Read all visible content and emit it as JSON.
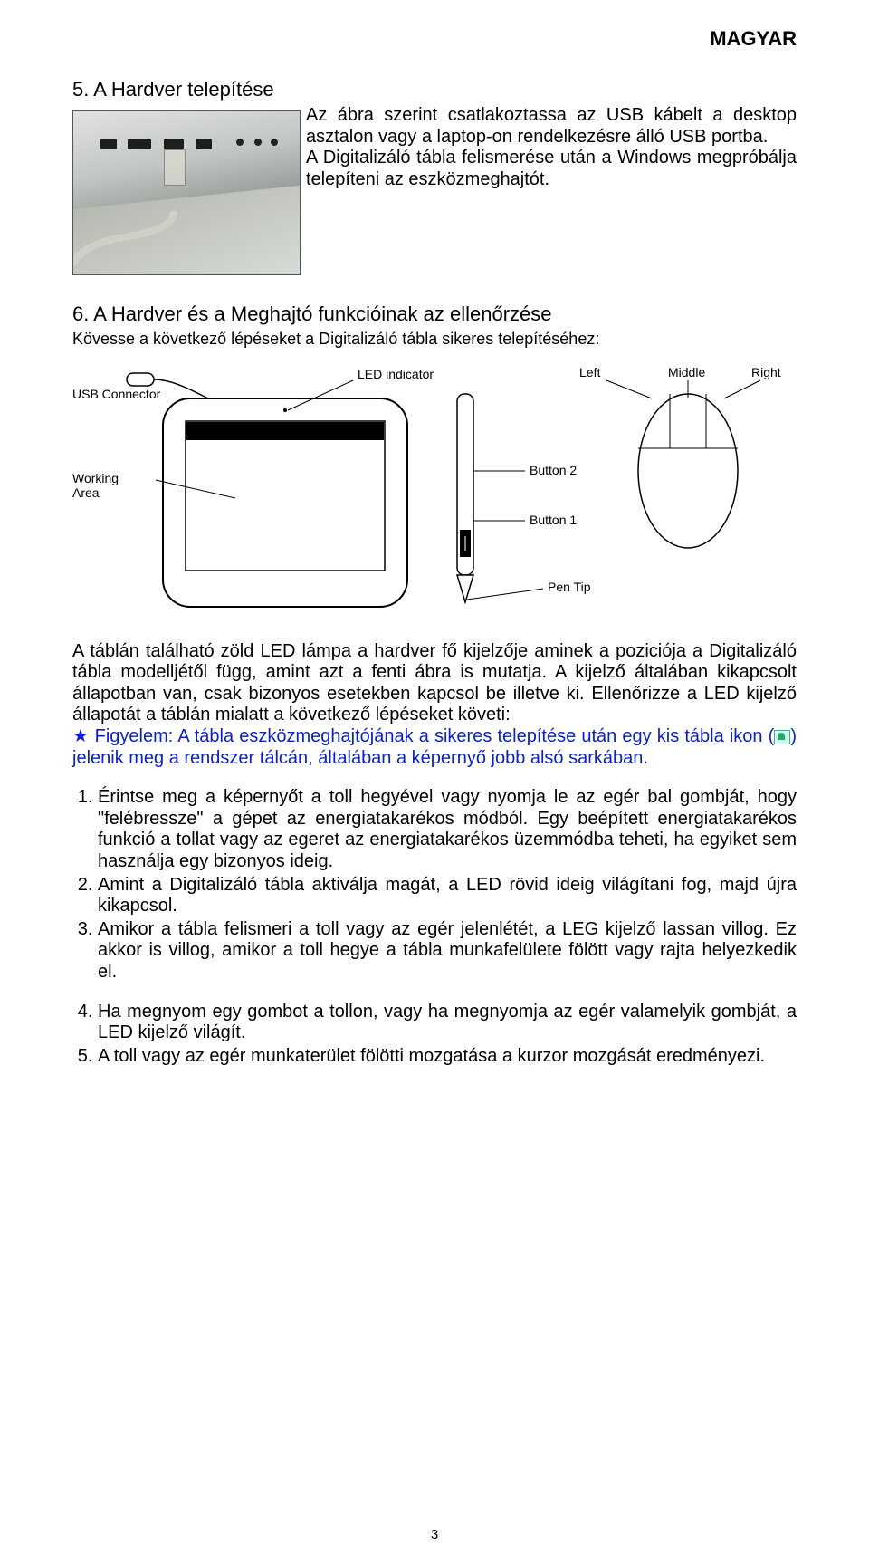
{
  "header": {
    "lang": "MAGYAR"
  },
  "section5": {
    "title": "5. A Hardver telepítése",
    "body": "Az ábra szerint csatlakoztassa az USB kábelt a desktop asztalon vagy a laptop-on rendelkezésre álló USB portba.\nA Digitalizáló tábla felismerése után a Windows megpróbálja telepíteni az eszközmeghajtót."
  },
  "section6": {
    "title": "6. A Hardver és a Meghajtó funkcióinak az ellenőrzése",
    "subtitle": "Kövesse a következő lépéseket a Digitalizáló tábla sikeres telepítéséhez:"
  },
  "diagram": {
    "labels": {
      "usb": "USB Connector",
      "led": "LED indicator",
      "working": "Working\nArea",
      "left": "Left",
      "middle": "Middle",
      "right": "Right",
      "btn2": "Button 2",
      "btn1": "Button 1",
      "pentip": "Pen Tip"
    },
    "colors": {
      "stroke": "#000000",
      "bg": "#ffffff",
      "text": "#000000"
    }
  },
  "afterDiagram": "A táblán található zöld LED lámpa a hardver fő kijelzője aminek a poziciója a Digitalizáló tábla modelljétől függ, amint azt a fenti ábra is mutatja. A kijelző általában kikapcsolt állapotban van, csak bizonyos esetekben kapcsol be illetve ki. Ellenőrizze a LED kijelző állapotát a táblán mialatt a következő lépéseket követi:",
  "blueNote": {
    "star": "★",
    "prefix": " Figyelem: A tábla eszközmeghajtójának a sikeres telepítése után egy kis tábla ikon (",
    "suffix": ") jelenik meg a rendszer tálcán, általában a képernyő jobb alsó sarkában."
  },
  "list1": {
    "start": 1,
    "items": [
      "Érintse meg a képernyőt a toll hegyével vagy nyomja le az egér bal gombját, hogy \"felébressze\" a gépet az energiatakarékos módból. Egy beépített energiatakarékos funkció a tollat vagy az egeret az energiatakarékos üzemmódba teheti, ha egyiket sem használja egy bizonyos ideig.",
      "Amint a Digitalizáló tábla aktiválja magát, a LED rövid ideig világítani fog, majd újra kikapcsol.",
      "Amikor a tábla felismeri a toll vagy az egér jelenlétét, a LEG kijelző lassan villog. Ez akkor is villog, amikor a toll hegye a tábla munkafelülete fölött vagy rajta helyezkedik el."
    ]
  },
  "list2": {
    "start": 4,
    "items": [
      "Ha megnyom egy gombot a tollon, vagy ha megnyomja az egér valamelyik gombját, a LED kijelző világít.",
      "A toll vagy az egér munkaterület fölötti mozgatása a kurzor mozgását eredményezi."
    ]
  },
  "pageNumber": "3"
}
